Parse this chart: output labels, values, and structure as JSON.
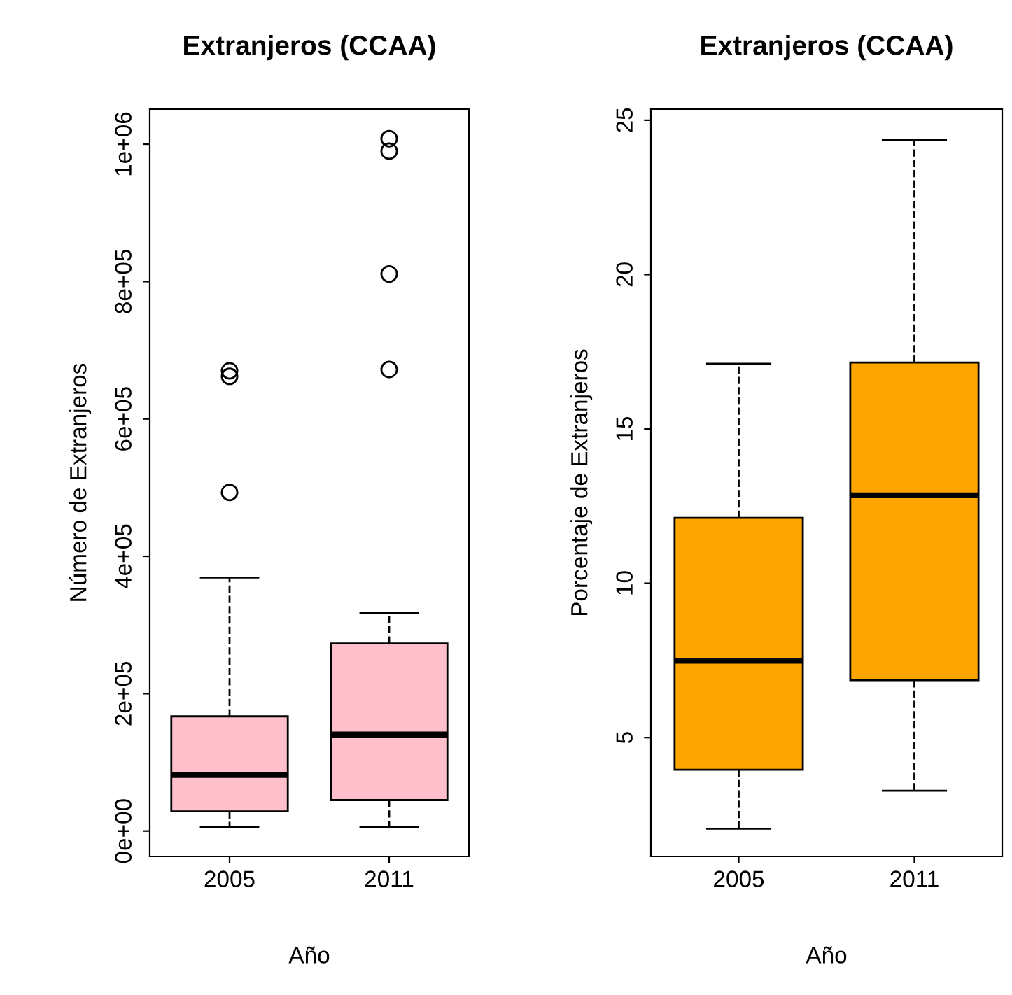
{
  "chart_data": [
    {
      "type": "box",
      "title": "Extranjeros (CCAA)",
      "xlabel": "Año",
      "ylabel": "Número de Extranjeros",
      "categories": [
        "2005",
        "2011"
      ],
      "color": "#ffc0cb",
      "boxes": [
        {
          "low": 6000,
          "q1": 28500,
          "median": 81500,
          "q3": 167000,
          "high": 369000,
          "outliers": [
            493000,
            662000,
            670000
          ]
        },
        {
          "low": 6000,
          "q1": 45000,
          "median": 140500,
          "q3": 273000,
          "high": 318000,
          "outliers": [
            672000,
            811000,
            990000,
            1008000
          ]
        }
      ],
      "ylim": [
        -37000,
        1051000
      ],
      "yticks": [
        {
          "value": 0,
          "label": "0e+00"
        },
        {
          "value": 200000,
          "label": "2e+05"
        },
        {
          "value": 400000,
          "label": "4e+05"
        },
        {
          "value": 600000,
          "label": "6e+05"
        },
        {
          "value": 800000,
          "label": "8e+05"
        },
        {
          "value": 1000000,
          "label": "1e+06"
        }
      ]
    },
    {
      "type": "box",
      "title": "Extranjeros (CCAA)",
      "xlabel": "Año",
      "ylabel": "Porcentaje de Extranjeros",
      "categories": [
        "2005",
        "2011"
      ],
      "color": "#ffa500",
      "boxes": [
        {
          "low": 2.05,
          "q1": 3.96,
          "median": 7.49,
          "q3": 12.12,
          "high": 17.11
        },
        {
          "low": 3.28,
          "q1": 6.86,
          "median": 12.85,
          "q3": 17.15,
          "high": 24.37
        }
      ],
      "ylim": [
        1.15,
        25.36
      ],
      "yticks": [
        5,
        10,
        15,
        20,
        25
      ]
    }
  ]
}
